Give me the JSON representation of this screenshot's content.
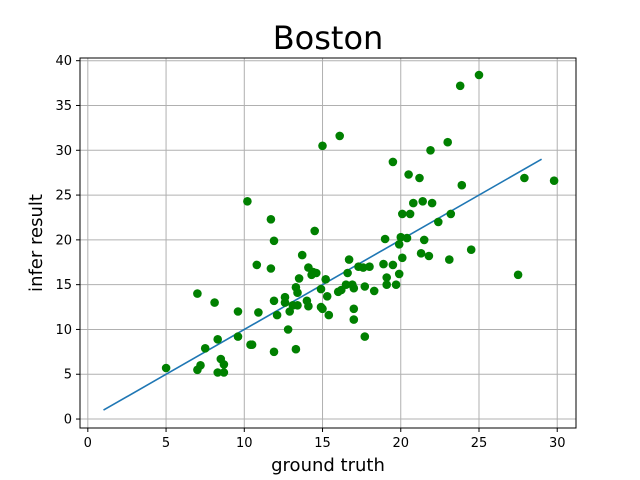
{
  "chart_data": {
    "type": "scatter",
    "title": "Boston",
    "xlabel": "ground truth",
    "ylabel": "infer result",
    "xlim": [
      -0.5,
      31.2
    ],
    "ylim": [
      -1.0,
      40.3
    ],
    "xticks": [
      0,
      5,
      10,
      15,
      20,
      25,
      30
    ],
    "yticks": [
      0,
      5,
      10,
      15,
      20,
      25,
      30,
      35,
      40
    ],
    "grid": true,
    "legend": "none",
    "colors": {
      "points": "#008000",
      "line": "#1f77b4",
      "grid": "#b0b0b0"
    },
    "series": [
      {
        "kind": "scatter",
        "points": [
          [
            5.0,
            5.7
          ],
          [
            7.0,
            5.5
          ],
          [
            7.2,
            6.0
          ],
          [
            7.0,
            14.0
          ],
          [
            7.5,
            7.9
          ],
          [
            8.1,
            13.0
          ],
          [
            8.3,
            8.9
          ],
          [
            8.3,
            5.2
          ],
          [
            8.5,
            6.7
          ],
          [
            8.7,
            6.1
          ],
          [
            8.7,
            5.2
          ],
          [
            9.6,
            12.0
          ],
          [
            9.6,
            9.2
          ],
          [
            10.2,
            24.3
          ],
          [
            10.4,
            8.3
          ],
          [
            10.5,
            8.3
          ],
          [
            10.8,
            17.2
          ],
          [
            10.9,
            11.9
          ],
          [
            11.7,
            22.3
          ],
          [
            11.7,
            16.8
          ],
          [
            11.9,
            7.5
          ],
          [
            11.9,
            19.9
          ],
          [
            11.9,
            13.2
          ],
          [
            12.1,
            11.6
          ],
          [
            12.6,
            13.6
          ],
          [
            12.6,
            13.0
          ],
          [
            12.8,
            10.0
          ],
          [
            12.9,
            12.0
          ],
          [
            13.1,
            12.7
          ],
          [
            13.3,
            7.8
          ],
          [
            13.3,
            14.7
          ],
          [
            13.4,
            14.1
          ],
          [
            13.4,
            12.7
          ],
          [
            13.5,
            15.7
          ],
          [
            13.7,
            18.3
          ],
          [
            14.0,
            13.2
          ],
          [
            14.1,
            16.9
          ],
          [
            14.1,
            12.6
          ],
          [
            14.3,
            16.1
          ],
          [
            14.4,
            16.4
          ],
          [
            14.5,
            21.0
          ],
          [
            14.6,
            16.3
          ],
          [
            14.9,
            14.5
          ],
          [
            14.9,
            12.5
          ],
          [
            15.0,
            30.5
          ],
          [
            15.0,
            12.3
          ],
          [
            15.2,
            15.6
          ],
          [
            15.3,
            13.7
          ],
          [
            15.4,
            11.6
          ],
          [
            16.0,
            14.2
          ],
          [
            16.1,
            31.6
          ],
          [
            16.2,
            14.4
          ],
          [
            16.5,
            15.0
          ],
          [
            16.6,
            16.3
          ],
          [
            16.7,
            17.8
          ],
          [
            16.9,
            15.0
          ],
          [
            17.0,
            14.6
          ],
          [
            17.0,
            11.1
          ],
          [
            17.0,
            12.3
          ],
          [
            17.3,
            17.0
          ],
          [
            17.6,
            16.9
          ],
          [
            17.7,
            14.8
          ],
          [
            17.7,
            9.2
          ],
          [
            18.0,
            17.0
          ],
          [
            18.3,
            14.3
          ],
          [
            18.9,
            17.3
          ],
          [
            19.0,
            20.1
          ],
          [
            19.1,
            15.0
          ],
          [
            19.1,
            15.8
          ],
          [
            19.5,
            17.2
          ],
          [
            19.5,
            28.7
          ],
          [
            19.7,
            15.0
          ],
          [
            19.9,
            19.5
          ],
          [
            19.9,
            16.2
          ],
          [
            20.0,
            20.3
          ],
          [
            20.1,
            18.0
          ],
          [
            20.1,
            22.9
          ],
          [
            20.4,
            20.2
          ],
          [
            20.5,
            27.3
          ],
          [
            20.6,
            22.9
          ],
          [
            20.8,
            24.1
          ],
          [
            21.2,
            26.9
          ],
          [
            21.3,
            18.5
          ],
          [
            21.4,
            24.3
          ],
          [
            21.5,
            20.0
          ],
          [
            21.8,
            18.2
          ],
          [
            21.9,
            30.0
          ],
          [
            22.0,
            24.1
          ],
          [
            22.4,
            22.0
          ],
          [
            23.0,
            30.9
          ],
          [
            23.1,
            17.8
          ],
          [
            23.2,
            22.9
          ],
          [
            23.8,
            37.2
          ],
          [
            23.9,
            26.1
          ],
          [
            24.5,
            18.9
          ],
          [
            25.0,
            38.4
          ],
          [
            27.5,
            16.1
          ],
          [
            27.9,
            26.9
          ],
          [
            29.8,
            26.6
          ]
        ]
      },
      {
        "kind": "line",
        "points": [
          [
            1.0,
            1.0
          ],
          [
            29.0,
            29.0
          ]
        ]
      }
    ]
  }
}
